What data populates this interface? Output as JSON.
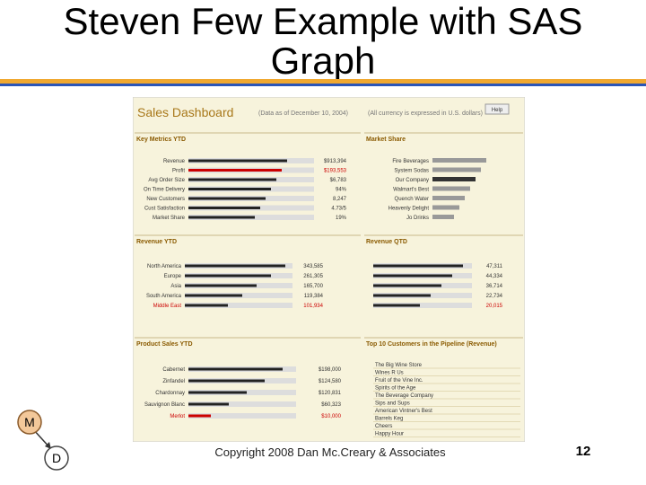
{
  "slide": {
    "title": "Steven Few Example with SAS Graph",
    "footer": "Copyright 2008 Dan Mc.Creary & Associates",
    "page_number": "12",
    "logo": {
      "top": "M",
      "bottom": "D"
    }
  },
  "dashboard": {
    "title": "Sales Dashboard",
    "date_note": "(Data as of December 10, 2004)",
    "currency_note": "(All currency is expressed in U.S. dollars)",
    "help": "Help",
    "panels": {
      "key_metrics": {
        "title": "Key Metrics YTD",
        "rows": [
          {
            "label": "Revenue",
            "value": "$913,394"
          },
          {
            "label": "Profit",
            "value": "$193,553"
          },
          {
            "label": "Avg Order Size",
            "value": "$6,783"
          },
          {
            "label": "On Time Delivery",
            "value": "94%"
          },
          {
            "label": "New Customers",
            "value": "8,247"
          },
          {
            "label": "Cust Satisfaction",
            "value": "4.73/5"
          },
          {
            "label": "Market Share",
            "value": "19%"
          }
        ]
      },
      "market_share": {
        "title": "Market Share",
        "rows": [
          "Fire Beverages",
          "System Sodas",
          "Our Company",
          "Walmart's Best",
          "Quench Water",
          "Heavenly Delight",
          "Jo Drinks"
        ]
      },
      "revenue_ytd": {
        "title": "Revenue YTD",
        "rows": [
          {
            "label": "North America",
            "value": "343,585"
          },
          {
            "label": "Europe",
            "value": "261,305"
          },
          {
            "label": "Asia",
            "value": "165,700"
          },
          {
            "label": "South America",
            "value": "119,384"
          },
          {
            "label": "Middle East",
            "value": "101,934"
          }
        ]
      },
      "revenue_qtd": {
        "title": "Revenue QTD",
        "rows": [
          "47,311",
          "44,334",
          "36,714",
          "22,734",
          "20,015"
        ]
      },
      "product_sales": {
        "title": "Product Sales YTD",
        "rows": [
          {
            "label": "Cabernet",
            "value": "$198,000"
          },
          {
            "label": "Zinfandel",
            "value": "$124,580"
          },
          {
            "label": "Chardonnay",
            "value": "$120,831"
          },
          {
            "label": "Sauvignon Blanc",
            "value": "$60,323"
          },
          {
            "label": "Merlot",
            "value": "$10,000"
          }
        ]
      },
      "top_customers": {
        "title": "Top 10 Customers in the Pipeline (Revenue)",
        "rows": [
          "The Big Wine Store",
          "Wines R Us",
          "Fruit of the Vine Inc.",
          "Spirits of the Age",
          "The Beverage Company",
          "Sips and Sups",
          "American Vintner's Best",
          "Barrels Keg",
          "Cheers",
          "Happy Hour"
        ]
      }
    }
  }
}
